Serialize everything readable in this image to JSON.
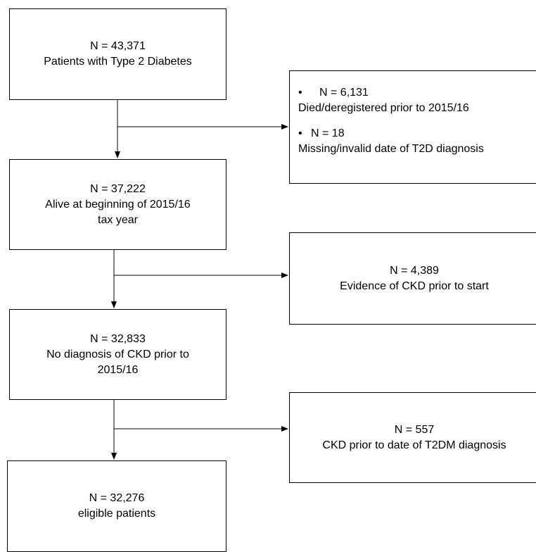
{
  "flowchart": {
    "main_steps": [
      {
        "count": "N = 43,371",
        "lines": [
          "Patients with Type 2 Diabetes"
        ]
      },
      {
        "count": "N = 37,222",
        "lines": [
          "Alive at beginning of 2015/16",
          "tax year"
        ]
      },
      {
        "count": "N = 32,833",
        "lines": [
          "No diagnosis of CKD prior to",
          "2015/16"
        ]
      },
      {
        "count": "N = 32,276",
        "lines": [
          "eligible patients"
        ]
      }
    ],
    "exclusions": [
      {
        "bullets": [
          {
            "mark": "•",
            "count": "N = 6,131",
            "reason": "Died/deregistered prior to 2015/16"
          },
          {
            "mark": "•",
            "count": "N = 18",
            "reason": "Missing/invalid date of T2D diagnosis"
          }
        ]
      },
      {
        "count": "N = 4,389",
        "reason": "Evidence of CKD prior to start"
      },
      {
        "count": "N = 557",
        "reason": "CKD prior to date of T2DM diagnosis"
      }
    ]
  },
  "colors": {
    "line": "#000000",
    "box_border": "#000000",
    "background": "#ffffff"
  }
}
